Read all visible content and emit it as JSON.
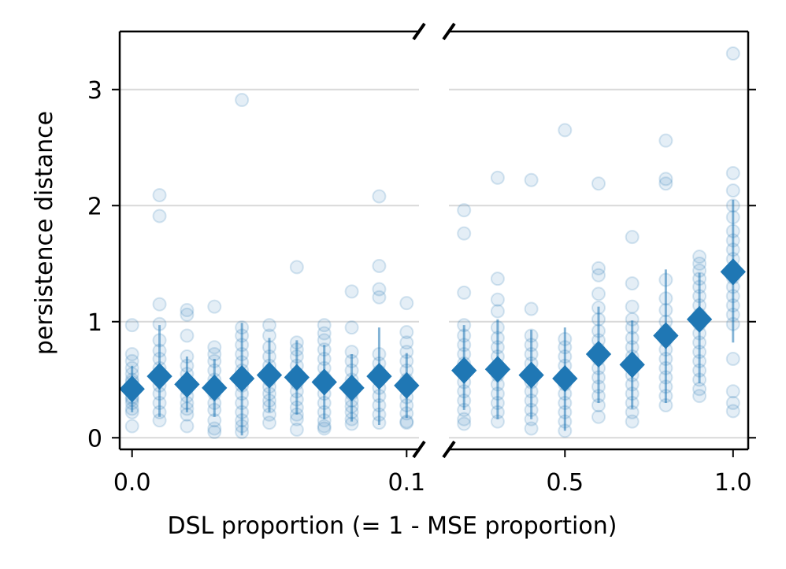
{
  "chart_data": {
    "type": "scatter",
    "xlabel": "DSL proportion (= 1 - MSE proportion)",
    "ylabel": "persistence distance",
    "ylim": [
      -0.1,
      3.5
    ],
    "y_ticks": [
      0,
      1,
      2,
      3
    ],
    "y_tick_labels": [
      "0",
      "1",
      "2",
      "3"
    ],
    "grid": "horizontal",
    "colors": {
      "points": "#1f77b4",
      "grid": "#d9d9d9",
      "axes": "#000000"
    },
    "panels": [
      {
        "name": "left",
        "xlim": [
          -0.0045,
          0.1045
        ],
        "x_ticks": [
          0.0,
          0.1
        ],
        "x_tick_labels": [
          "0.0",
          "0.1"
        ],
        "means": [
          {
            "x": 0.0,
            "y": 0.42,
            "ylo": 0.22,
            "yhi": 0.62
          },
          {
            "x": 0.01,
            "y": 0.53,
            "ylo": 0.18,
            "yhi": 0.97
          },
          {
            "x": 0.02,
            "y": 0.46,
            "ylo": 0.22,
            "yhi": 0.7
          },
          {
            "x": 0.03,
            "y": 0.43,
            "ylo": 0.18,
            "yhi": 0.68
          },
          {
            "x": 0.04,
            "y": 0.51,
            "ylo": 0.02,
            "yhi": 0.99
          },
          {
            "x": 0.05,
            "y": 0.54,
            "ylo": 0.22,
            "yhi": 0.86
          },
          {
            "x": 0.06,
            "y": 0.52,
            "ylo": 0.2,
            "yhi": 0.84
          },
          {
            "x": 0.07,
            "y": 0.48,
            "ylo": 0.16,
            "yhi": 0.8
          },
          {
            "x": 0.08,
            "y": 0.43,
            "ylo": 0.14,
            "yhi": 0.72
          },
          {
            "x": 0.09,
            "y": 0.53,
            "ylo": 0.11,
            "yhi": 0.95
          },
          {
            "x": 0.1,
            "y": 0.45,
            "ylo": 0.17,
            "yhi": 0.73
          }
        ],
        "points": [
          {
            "x": 0.0,
            "y": [
              0.97,
              0.1,
              0.22,
              0.3,
              0.35,
              0.4,
              0.45,
              0.5,
              0.55,
              0.6,
              0.66,
              0.72,
              0.25,
              0.33,
              0.48
            ]
          },
          {
            "x": 0.01,
            "y": [
              2.09,
              1.91,
              1.15,
              0.84,
              0.75,
              0.68,
              0.6,
              0.52,
              0.45,
              0.38,
              0.3,
              0.22,
              0.15,
              0.98
            ]
          },
          {
            "x": 0.02,
            "y": [
              1.1,
              1.06,
              0.88,
              0.7,
              0.62,
              0.55,
              0.48,
              0.42,
              0.36,
              0.3,
              0.25,
              0.1,
              0.2
            ]
          },
          {
            "x": 0.03,
            "y": [
              1.13,
              0.78,
              0.72,
              0.66,
              0.58,
              0.5,
              0.44,
              0.38,
              0.3,
              0.24,
              0.15,
              0.08,
              0.05
            ]
          },
          {
            "x": 0.04,
            "y": [
              2.91,
              0.95,
              0.88,
              0.8,
              0.72,
              0.65,
              0.58,
              0.52,
              0.45,
              0.38,
              0.3,
              0.22,
              0.15,
              0.1,
              0.05
            ]
          },
          {
            "x": 0.05,
            "y": [
              0.97,
              0.88,
              0.78,
              0.7,
              0.62,
              0.56,
              0.5,
              0.44,
              0.38,
              0.32,
              0.27,
              0.2,
              0.13
            ]
          },
          {
            "x": 0.06,
            "y": [
              1.47,
              0.82,
              0.76,
              0.7,
              0.62,
              0.55,
              0.47,
              0.4,
              0.33,
              0.26,
              0.2,
              0.16,
              0.07
            ]
          },
          {
            "x": 0.07,
            "y": [
              0.97,
              0.9,
              0.84,
              0.76,
              0.68,
              0.6,
              0.52,
              0.45,
              0.38,
              0.3,
              0.22,
              0.15,
              0.1,
              0.08
            ]
          },
          {
            "x": 0.08,
            "y": [
              1.26,
              0.95,
              0.74,
              0.66,
              0.58,
              0.5,
              0.44,
              0.38,
              0.32,
              0.27,
              0.22,
              0.16,
              0.12
            ]
          },
          {
            "x": 0.09,
            "y": [
              2.08,
              1.48,
              1.28,
              1.21,
              0.72,
              0.64,
              0.57,
              0.5,
              0.43,
              0.36,
              0.28,
              0.2,
              0.13
            ]
          },
          {
            "x": 0.1,
            "y": [
              1.16,
              0.91,
              0.82,
              0.74,
              0.66,
              0.58,
              0.5,
              0.42,
              0.35,
              0.28,
              0.21,
              0.14,
              0.13
            ]
          }
        ]
      },
      {
        "name": "right",
        "xlim": [
          0.155,
          1.045
        ],
        "x_ticks": [
          0.5,
          1.0
        ],
        "x_tick_labels": [
          "0.5",
          "1.0"
        ],
        "means": [
          {
            "x": 0.2,
            "y": 0.58,
            "ylo": 0.24,
            "yhi": 0.97
          },
          {
            "x": 0.3,
            "y": 0.59,
            "ylo": 0.16,
            "yhi": 1.02
          },
          {
            "x": 0.4,
            "y": 0.54,
            "ylo": 0.16,
            "yhi": 0.93
          },
          {
            "x": 0.5,
            "y": 0.51,
            "ylo": 0.06,
            "yhi": 0.95
          },
          {
            "x": 0.6,
            "y": 0.72,
            "ylo": 0.3,
            "yhi": 1.13
          },
          {
            "x": 0.7,
            "y": 0.63,
            "ylo": 0.25,
            "yhi": 1.01
          },
          {
            "x": 0.8,
            "y": 0.88,
            "ylo": 0.3,
            "yhi": 1.45
          },
          {
            "x": 0.9,
            "y": 1.02,
            "ylo": 0.47,
            "yhi": 1.42
          },
          {
            "x": 1.0,
            "y": 1.43,
            "ylo": 0.82,
            "yhi": 2.05
          }
        ],
        "points": [
          {
            "x": 0.2,
            "y": [
              1.96,
              1.76,
              1.25,
              0.97,
              0.88,
              0.8,
              0.72,
              0.64,
              0.56,
              0.48,
              0.4,
              0.32,
              0.24,
              0.16,
              0.12
            ]
          },
          {
            "x": 0.3,
            "y": [
              2.24,
              1.37,
              1.19,
              1.09,
              0.95,
              0.86,
              0.78,
              0.7,
              0.62,
              0.54,
              0.46,
              0.38,
              0.3,
              0.22,
              0.14
            ]
          },
          {
            "x": 0.4,
            "y": [
              2.22,
              1.11,
              0.88,
              0.8,
              0.72,
              0.64,
              0.56,
              0.48,
              0.4,
              0.32,
              0.24,
              0.16,
              0.08
            ]
          },
          {
            "x": 0.5,
            "y": [
              2.65,
              0.85,
              0.78,
              0.7,
              0.62,
              0.54,
              0.46,
              0.38,
              0.3,
              0.22,
              0.14,
              0.06
            ]
          },
          {
            "x": 0.6,
            "y": [
              2.19,
              1.46,
              1.4,
              1.24,
              1.12,
              1.02,
              0.92,
              0.84,
              0.76,
              0.68,
              0.6,
              0.52,
              0.44,
              0.36,
              0.28,
              0.18
            ]
          },
          {
            "x": 0.7,
            "y": [
              1.73,
              1.33,
              1.13,
              1.02,
              0.95,
              0.86,
              0.78,
              0.7,
              0.62,
              0.54,
              0.46,
              0.38,
              0.3,
              0.22,
              0.14
            ]
          },
          {
            "x": 0.8,
            "y": [
              2.56,
              2.23,
              2.19,
              1.36,
              1.2,
              1.1,
              1.0,
              0.92,
              0.84,
              0.76,
              0.68,
              0.6,
              0.52,
              0.44,
              0.36,
              0.28
            ]
          },
          {
            "x": 0.9,
            "y": [
              1.56,
              1.5,
              1.44,
              1.37,
              1.3,
              1.22,
              1.14,
              1.06,
              0.98,
              0.9,
              0.82,
              0.74,
              0.66,
              0.58,
              0.5,
              0.42,
              0.36
            ]
          },
          {
            "x": 1.0,
            "y": [
              3.31,
              2.28,
              2.13,
              2.0,
              1.9,
              1.78,
              1.7,
              1.62,
              1.54,
              1.46,
              1.38,
              1.3,
              1.22,
              1.14,
              1.06,
              0.98,
              0.68,
              0.4,
              0.3,
              0.23
            ]
          }
        ]
      }
    ]
  }
}
